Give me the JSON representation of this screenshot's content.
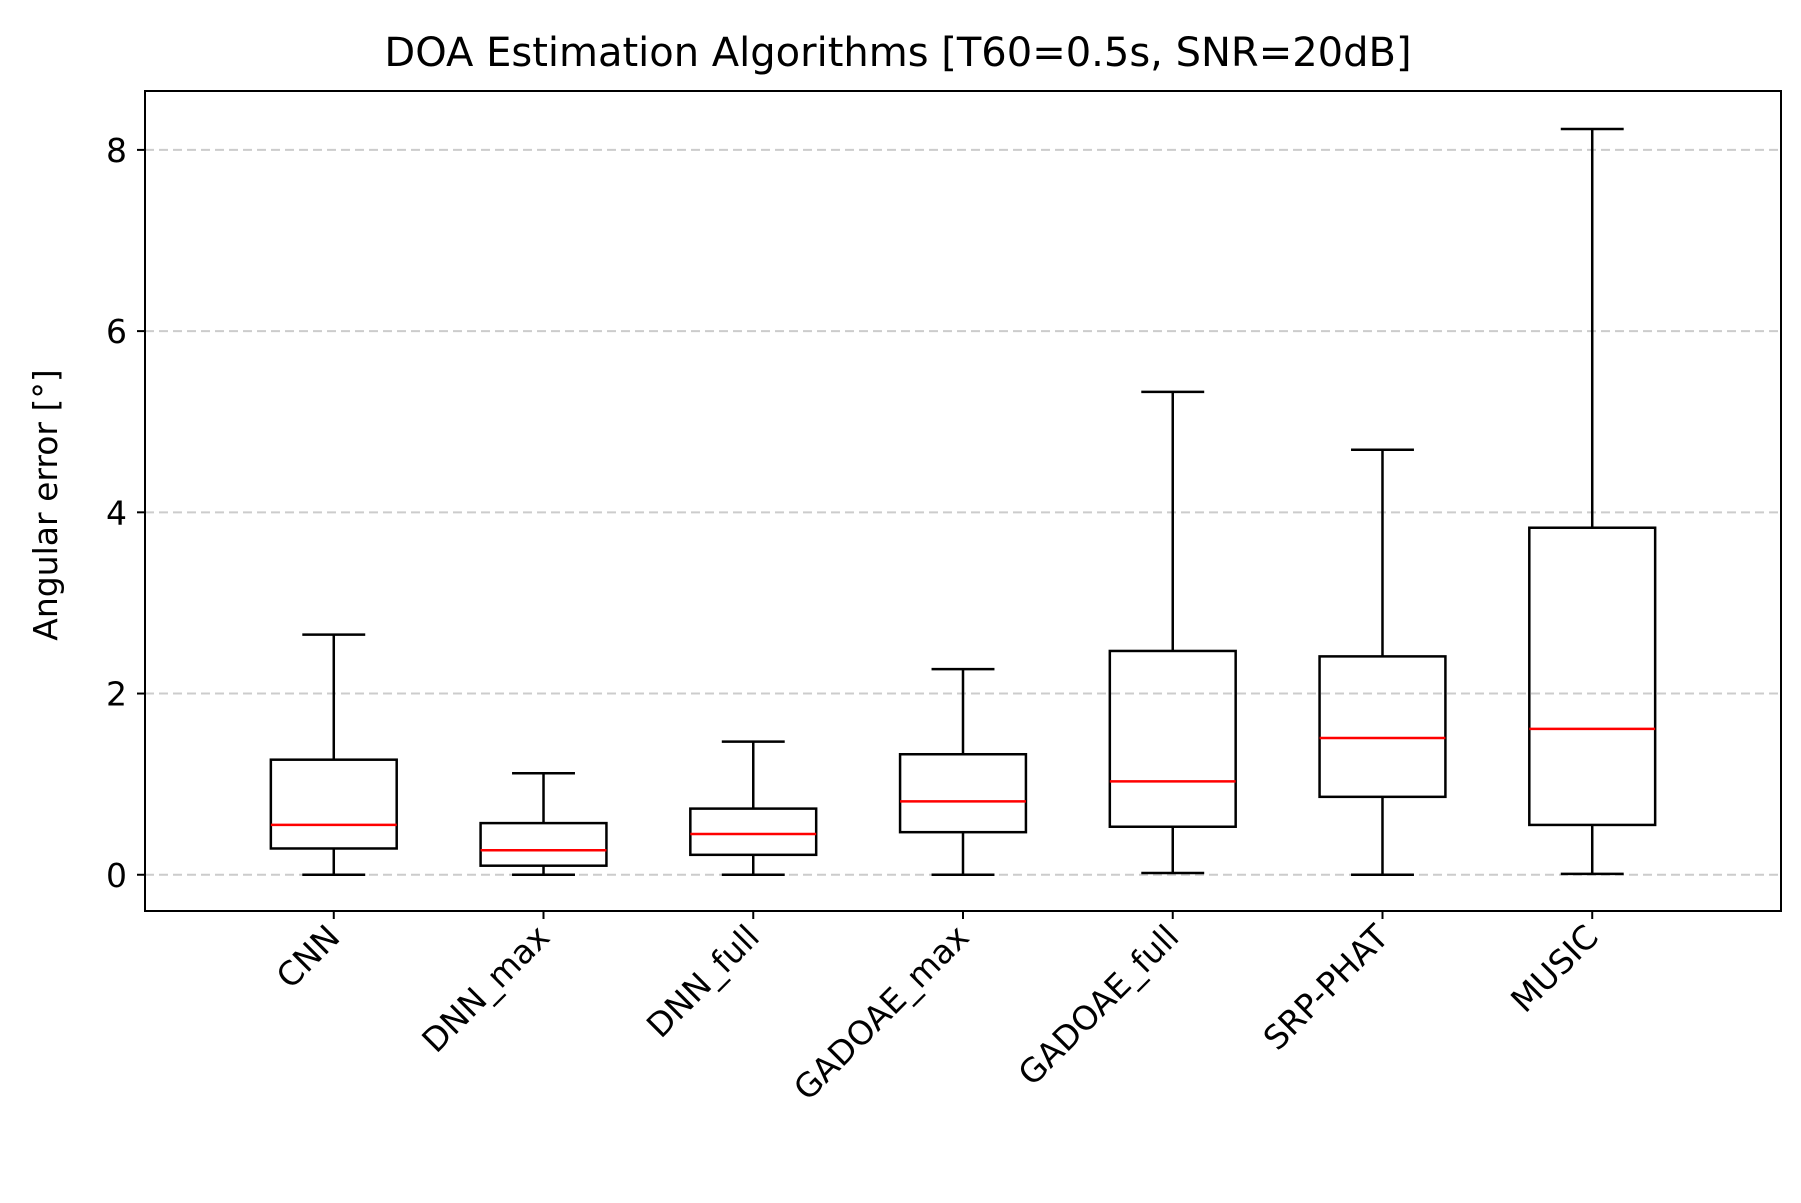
{
  "chart_data": {
    "type": "box",
    "title": "DOA Estimation Algorithms [T60=0.5s, SNR=20dB]",
    "xlabel": "",
    "ylabel": "Angular error [°]",
    "ylim": [
      -0.4,
      8.65
    ],
    "yticks": [
      0,
      2,
      4,
      6,
      8
    ],
    "grid": "y-dashed",
    "colors": {
      "box": "#000000",
      "median": "#ff0000",
      "grid": "#cccccc"
    },
    "categories": [
      "CNN",
      "DNN_max",
      "DNN_full",
      "GADOAE_max",
      "GADOAE_full",
      "SRP-PHAT",
      "MUSIC"
    ],
    "boxes": [
      {
        "label": "CNN",
        "whislo": 0.0,
        "q1": 0.29,
        "med": 0.55,
        "q3": 1.27,
        "whishi": 2.65
      },
      {
        "label": "DNN_max",
        "whislo": 0.0,
        "q1": 0.1,
        "med": 0.27,
        "q3": 0.57,
        "whishi": 1.12
      },
      {
        "label": "DNN_full",
        "whislo": 0.0,
        "q1": 0.22,
        "med": 0.45,
        "q3": 0.73,
        "whishi": 1.47
      },
      {
        "label": "GADOAE_max",
        "whislo": 0.0,
        "q1": 0.47,
        "med": 0.81,
        "q3": 1.33,
        "whishi": 2.27
      },
      {
        "label": "GADOAE_full",
        "whislo": 0.02,
        "q1": 0.53,
        "med": 1.03,
        "q3": 2.47,
        "whishi": 5.33
      },
      {
        "label": "SRP-PHAT",
        "whislo": 0.0,
        "q1": 0.86,
        "med": 1.51,
        "q3": 2.41,
        "whishi": 4.69
      },
      {
        "label": "MUSIC",
        "whislo": 0.01,
        "q1": 0.55,
        "med": 1.61,
        "q3": 3.83,
        "whishi": 8.23
      }
    ]
  }
}
